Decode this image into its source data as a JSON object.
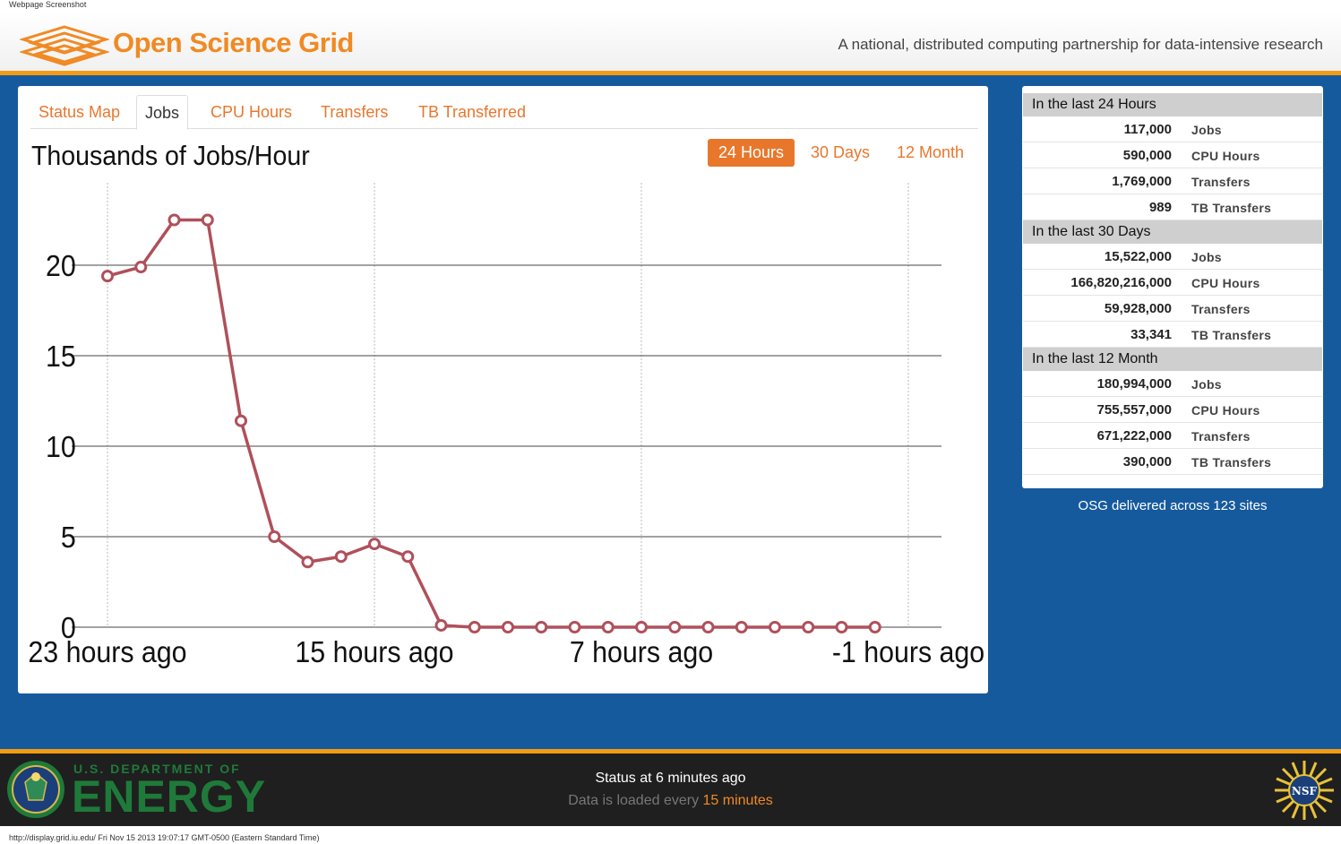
{
  "caption_top": "Webpage Screenshot",
  "header": {
    "brand": "Open Science Grid",
    "tagline": "A national, distributed computing partnership for data-intensive research"
  },
  "tabs": [
    "Status Map",
    "Jobs",
    "CPU Hours",
    "Transfers",
    "TB Transferred"
  ],
  "active_tab": "Jobs",
  "ranges": [
    "24 Hours",
    "30 Days",
    "12 Month"
  ],
  "active_range": "24 Hours",
  "colors": {
    "accent": "#e8772c",
    "line": "#b0505a",
    "background": "#165a9e",
    "doe_green": "#1f7a3a"
  },
  "chart_data": {
    "type": "line",
    "title": "Thousands of Jobs/Hour",
    "x_tick_labels": [
      "23 hours ago",
      "15 hours ago",
      "7 hours ago",
      "-1 hours ago"
    ],
    "y_ticks": [
      0,
      5,
      10,
      15,
      20
    ],
    "ylim": [
      0,
      24
    ],
    "x": [
      23,
      22,
      21,
      20,
      19,
      18,
      17,
      16,
      15,
      14,
      13,
      12,
      11,
      10,
      9,
      8,
      7,
      6,
      5,
      4,
      3,
      2,
      1,
      0
    ],
    "x_axis": "hours ago (23 to -1)",
    "values": [
      19.4,
      19.9,
      22.5,
      22.5,
      11.4,
      5.0,
      3.6,
      3.9,
      4.6,
      3.9,
      0.1,
      0.0,
      0.0,
      0.0,
      0.0,
      0.0,
      0.0,
      0.0,
      0.0,
      0.0,
      0.0,
      0.0,
      0.0,
      0.0
    ],
    "grid": true
  },
  "stats": [
    {
      "heading": "In the last 24 Hours",
      "rows": [
        {
          "value": "117,000",
          "label": "Jobs"
        },
        {
          "value": "590,000",
          "label": "CPU Hours"
        },
        {
          "value": "1,769,000",
          "label": "Transfers"
        },
        {
          "value": "989",
          "label": "TB Transfers"
        }
      ]
    },
    {
      "heading": "In the last 30 Days",
      "rows": [
        {
          "value": "15,522,000",
          "label": "Jobs"
        },
        {
          "value": "166,820,216,000",
          "label": "CPU Hours"
        },
        {
          "value": "59,928,000",
          "label": "Transfers"
        },
        {
          "value": "33,341",
          "label": "TB Transfers"
        }
      ]
    },
    {
      "heading": "In the last 12 Month",
      "rows": [
        {
          "value": "180,994,000",
          "label": "Jobs"
        },
        {
          "value": "755,557,000",
          "label": "CPU Hours"
        },
        {
          "value": "671,222,000",
          "label": "Transfers"
        },
        {
          "value": "390,000",
          "label": "TB Transfers"
        }
      ]
    }
  ],
  "osg_note": "OSG delivered across 123 sites",
  "footer": {
    "doe_small": "U.S. DEPARTMENT OF",
    "doe_big": "ENERGY",
    "status": "Status at 6 minutes ago",
    "loaded_prefix": "Data is loaded every ",
    "loaded_highlight": "15 minutes",
    "nsf_label": "NSF"
  },
  "caption_bottom": "http://display.grid.iu.edu/ Fri Nov 15 2013 19:07:17 GMT-0500 (Eastern Standard Time)"
}
